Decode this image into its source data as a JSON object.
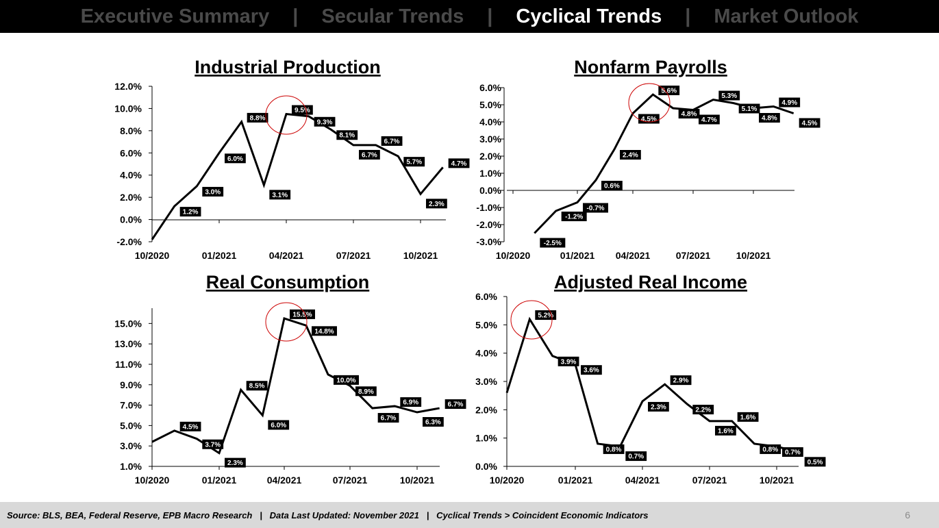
{
  "nav": {
    "tabs": [
      {
        "label": "Executive Summary",
        "active": false
      },
      {
        "label": "Secular Trends",
        "active": false
      },
      {
        "label": "Cyclical Trends",
        "active": true
      },
      {
        "label": "Market Outlook",
        "active": false
      }
    ],
    "separator": "|"
  },
  "footer": {
    "source": "Source: BLS, BEA, Federal Reserve, EPB Macro Research   |   Data Last Updated: November 2021   |   Cyclical Trends > Coincident Economic Indicators",
    "page_number": "6"
  },
  "colors": {
    "line": "#000000",
    "highlight_circle": "#cc0000",
    "nav_active": "#ffffff",
    "nav_inactive": "#4a4a4a",
    "footer_bg": "#d9d9d9"
  },
  "chart_data": [
    {
      "type": "line",
      "title": "Industrial Production",
      "x_ticks": [
        "10/2020",
        "01/2021",
        "04/2021",
        "07/2021",
        "10/2021"
      ],
      "y_ticks": [
        "-2.0%",
        "0.0%",
        "2.0%",
        "4.0%",
        "6.0%",
        "8.0%",
        "10.0%",
        "12.0%"
      ],
      "ylim": [
        -2,
        12
      ],
      "x": [
        "10/2020",
        "11/2020",
        "12/2020",
        "01/2021",
        "02/2021",
        "03/2021",
        "04/2021",
        "05/2021",
        "06/2021",
        "07/2021",
        "08/2021",
        "09/2021",
        "10/2021"
      ],
      "values": [
        -1.8,
        1.2,
        3.0,
        6.0,
        8.8,
        3.1,
        9.5,
        9.3,
        8.1,
        6.7,
        6.7,
        5.7,
        2.3
      ],
      "last_point": {
        "x": "11/2021",
        "value": 4.7
      },
      "labels": [
        "",
        "1.2%",
        "3.0%",
        "6.0%",
        "8.8%",
        "3.1%",
        "9.5%",
        "9.3%",
        "8.1%",
        "6.7%",
        "6.7%",
        "5.7%",
        "2.3%",
        "4.7%"
      ],
      "highlight_index": 6
    },
    {
      "type": "line",
      "title": "Nonfarm Payrolls",
      "x_ticks": [
        "10/2020",
        "01/2021",
        "04/2021",
        "07/2021",
        "10/2021"
      ],
      "y_ticks": [
        "-3.0%",
        "-2.0%",
        "-1.0%",
        "0.0%",
        "1.0%",
        "2.0%",
        "3.0%",
        "4.0%",
        "5.0%",
        "6.0%"
      ],
      "ylim": [
        -3,
        6
      ],
      "x": [
        "11/2020",
        "12/2020",
        "01/2021",
        "02/2021",
        "03/2021",
        "04/2021",
        "05/2021",
        "06/2021",
        "07/2021",
        "08/2021",
        "09/2021",
        "10/2021",
        "11/2021",
        "12/2021"
      ],
      "values": [
        -2.5,
        -1.2,
        -0.7,
        0.6,
        2.4,
        4.5,
        5.6,
        4.8,
        4.7,
        5.3,
        5.1,
        4.8,
        4.9,
        4.5
      ],
      "labels": [
        "-2.5%",
        "-1.2%",
        "-0.7%",
        "0.6%",
        "2.4%",
        "4.5%",
        "5.6%",
        "4.8%",
        "4.7%",
        "5.3%",
        "5.1%",
        "4.8%",
        "4.9%",
        "4.5%"
      ],
      "highlight_index": 6
    },
    {
      "type": "line",
      "title": "Real Consumption",
      "x_ticks": [
        "10/2020",
        "01/2021",
        "04/2021",
        "07/2021",
        "10/2021"
      ],
      "y_ticks": [
        "1.0%",
        "3.0%",
        "5.0%",
        "7.0%",
        "9.0%",
        "11.0%",
        "13.0%",
        "15.0%"
      ],
      "ylim": [
        1,
        16.5
      ],
      "x": [
        "10/2020",
        "11/2020",
        "12/2020",
        "01/2021",
        "02/2021",
        "03/2021",
        "04/2021",
        "05/2021",
        "06/2021",
        "07/2021",
        "08/2021",
        "09/2021",
        "10/2021"
      ],
      "values": [
        3.4,
        4.5,
        3.7,
        2.3,
        8.5,
        6.0,
        15.5,
        14.8,
        10.0,
        8.9,
        6.7,
        6.9,
        6.3
      ],
      "last_point": {
        "x": "11/2021",
        "value": 6.7
      },
      "labels": [
        "",
        "4.5%",
        "3.7%",
        "2.3%",
        "8.5%",
        "6.0%",
        "15.5%",
        "14.8%",
        "10.0%",
        "8.9%",
        "6.7%",
        "6.9%",
        "6.3%",
        "6.7%"
      ],
      "highlight_index": 6
    },
    {
      "type": "line",
      "title": "Adjusted Real Income",
      "x_ticks": [
        "10/2020",
        "01/2021",
        "04/2021",
        "07/2021",
        "10/2021"
      ],
      "y_ticks": [
        "0.0%",
        "1.0%",
        "2.0%",
        "3.0%",
        "4.0%",
        "5.0%",
        "6.0%"
      ],
      "ylim": [
        0,
        6
      ],
      "x": [
        "10/2020",
        "11/2020",
        "12/2020",
        "01/2021",
        "02/2021",
        "03/2021",
        "04/2021",
        "05/2021",
        "06/2021",
        "07/2021",
        "08/2021",
        "09/2021",
        "10/2021"
      ],
      "values": [
        2.6,
        5.2,
        3.9,
        3.6,
        0.8,
        0.7,
        2.3,
        2.9,
        2.2,
        1.6,
        1.6,
        0.8,
        0.7
      ],
      "last_point": {
        "x": "11/2021",
        "value": 0.5
      },
      "labels": [
        "",
        "5.2%",
        "3.9%",
        "3.6%",
        "0.8%",
        "0.7%",
        "2.3%",
        "2.9%",
        "2.2%",
        "1.6%",
        "1.6%",
        "0.8%",
        "0.7%",
        "0.5%"
      ],
      "highlight_index": 1
    }
  ]
}
